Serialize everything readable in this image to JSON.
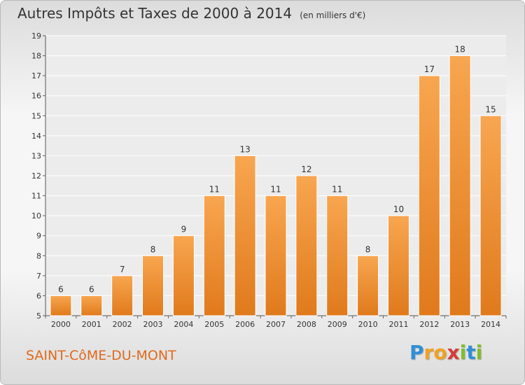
{
  "header": {
    "title": "Autres Impôts et Taxes de 2000 à 2014",
    "unit": "(en milliers d'€)"
  },
  "footer": {
    "place": "SAINT-CôME-DU-MONT",
    "logo_letters": [
      {
        "ch": "P",
        "color": "#2f8fd8"
      },
      {
        "ch": "r",
        "color": "#f0a21f"
      },
      {
        "ch": "o",
        "color": "#f0a21f"
      },
      {
        "ch": "x",
        "color": "#d83a3a"
      },
      {
        "ch": "i",
        "color": "#7fbf2a"
      },
      {
        "ch": "t",
        "color": "#2f8fd8"
      },
      {
        "ch": "i",
        "color": "#7fbf2a"
      }
    ]
  },
  "chart_data": {
    "type": "bar",
    "title": "Autres Impôts et Taxes de 2000 à 2014",
    "subtitle": "(en milliers d'€)",
    "xlabel": "",
    "ylabel": "",
    "ylim": [
      5,
      19
    ],
    "yticks": [
      5,
      6,
      7,
      8,
      9,
      10,
      11,
      12,
      13,
      14,
      15,
      16,
      17,
      18,
      19
    ],
    "grid": "horizontal",
    "bar_color": "#f0913a",
    "categories": [
      "2000",
      "2001",
      "2002",
      "2003",
      "2004",
      "2005",
      "2006",
      "2007",
      "2008",
      "2009",
      "2010",
      "2011",
      "2012",
      "2013",
      "2014"
    ],
    "values": [
      6,
      6,
      7,
      8,
      9,
      11,
      13,
      11,
      12,
      11,
      8,
      10,
      17,
      18,
      15
    ],
    "data_labels": [
      "6",
      "6",
      "7",
      "8",
      "9",
      "11",
      "13",
      "11",
      "12",
      "11",
      "8",
      "10",
      "17",
      "18",
      "15"
    ]
  }
}
